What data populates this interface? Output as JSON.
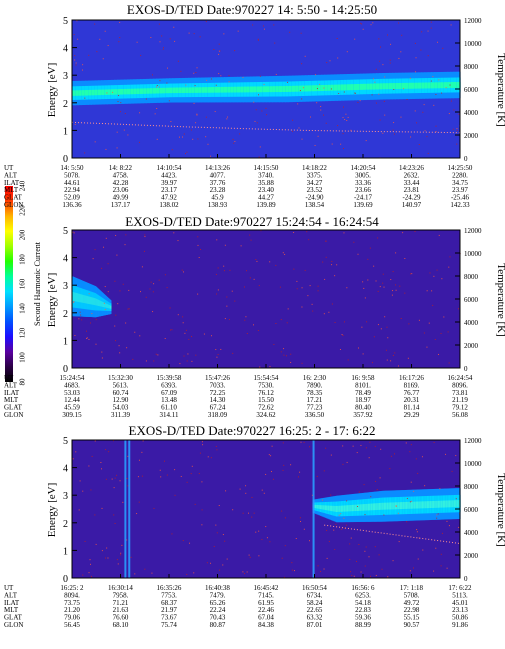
{
  "colorbar": {
    "label": "Second Harmonic Current",
    "ticks": [
      "80",
      "100",
      "120",
      "140",
      "160",
      "180",
      "200",
      "220",
      "240"
    ],
    "colors": [
      "#000000",
      "#2a0044",
      "#5a00a0",
      "#1c0dff",
      "#0050ff",
      "#009cff",
      "#00e0ff",
      "#00ff9a",
      "#22ff00",
      "#a0ff00",
      "#ffff00",
      "#ffb400",
      "#ff3c00",
      "#ff0000"
    ]
  },
  "chart_data": [
    {
      "type": "heatmap",
      "title": "EXOS-D/TED   Date:970227  14: 5:50 - 14:25:50",
      "ylabel": "Energy [eV]",
      "y2label": "Temperature [K]",
      "ylim": [
        0,
        5
      ],
      "y2lim": [
        0,
        12000
      ],
      "yticks": [
        "0",
        "1",
        "2",
        "3",
        "4",
        "5"
      ],
      "y2ticks": [
        "0",
        "2000",
        "4000",
        "6000",
        "8000",
        "10000",
        "12000"
      ],
      "background_color": "#2f37d6",
      "peak_band": [
        {
          "x": 0.0,
          "center": 2.35,
          "width": 0.55
        },
        {
          "x": 0.25,
          "center": 2.45,
          "width": 0.55
        },
        {
          "x": 0.55,
          "center": 2.5,
          "width": 0.6
        },
        {
          "x": 0.8,
          "center": 2.6,
          "width": 0.6
        },
        {
          "x": 1.0,
          "center": 2.65,
          "width": 0.6
        }
      ],
      "temperature_trace": [
        {
          "x": 0.0,
          "t": 3100
        },
        {
          "x": 0.3,
          "t": 2700
        },
        {
          "x": 0.6,
          "t": 2400
        },
        {
          "x": 1.0,
          "t": 2200
        }
      ],
      "ephemeris": {
        "labels": [
          "UT",
          "ALT",
          "ILAT",
          "MLT",
          "GLAT",
          "GLON"
        ],
        "columns": [
          [
            "14: 5:50",
            "5078.",
            "44.61",
            "22.94",
            "52.09",
            "136.36"
          ],
          [
            "14: 8:22",
            "4758.",
            "42.28",
            "23.06",
            "49.99",
            "137.17"
          ],
          [
            "14:10:54",
            "4423.",
            "39.97",
            "23.17",
            "47.92",
            "138.02"
          ],
          [
            "14:13:26",
            "4077.",
            "37.76",
            "23.28",
            "45.9",
            "138.93"
          ],
          [
            "14:15:50",
            "3740.",
            "35.88",
            "23.40",
            "44.27",
            "139.89"
          ],
          [
            "14:18:22",
            "3375.",
            "34.27",
            "23.52",
            "-24.90",
            "138.54"
          ],
          [
            "14:20:54",
            "3005.",
            "33.36",
            "23.66",
            "-24.17",
            "139.69"
          ],
          [
            "14:23:26",
            "2632.",
            "33.44",
            "23.81",
            "-24.29",
            "140.97"
          ],
          [
            "14:25:50",
            "2280.",
            "34.75",
            "23.97",
            "-25.46",
            "142.33"
          ]
        ]
      }
    },
    {
      "type": "heatmap",
      "title": "EXOS-D/TED   Date:970227  15:24:54 - 16:24:54",
      "ylabel": "Energy [eV]",
      "y2label": "Temperature [K]",
      "ylim": [
        0,
        5
      ],
      "y2lim": [
        0,
        12000
      ],
      "yticks": [
        "0",
        "1",
        "2",
        "3",
        "4",
        "5"
      ],
      "y2ticks": [
        "0",
        "2000",
        "4000",
        "6000",
        "8000",
        "10000",
        "12000"
      ],
      "background_color": "#3a1aa6",
      "peak_band": [
        {
          "x": 0.0,
          "center": 2.6,
          "width": 0.9
        },
        {
          "x": 0.06,
          "center": 2.4,
          "width": 0.7
        },
        {
          "x": 0.1,
          "center": 2.2,
          "width": 0.3
        }
      ],
      "temperature_trace": [],
      "ephemeris": {
        "labels": [
          "UT",
          "ALT",
          "ILAT",
          "MLT",
          "GLAT",
          "GLON"
        ],
        "columns": [
          [
            "15:24:54",
            "4683.",
            "53.03",
            "12.44",
            "45.59",
            "309.15"
          ],
          [
            "15:32:30",
            "5613.",
            "60.74",
            "12.90",
            "54.03",
            "311.39"
          ],
          [
            "15:39:58",
            "6393.",
            "67.09",
            "13.48",
            "61.10",
            "314.11"
          ],
          [
            "15:47:26",
            "7033.",
            "72.25",
            "14.30",
            "67.24",
            "318.09"
          ],
          [
            "15:54:54",
            "7530.",
            "76.12",
            "15.50",
            "72.62",
            "324.62"
          ],
          [
            "16: 2:30",
            "7890.",
            "78.35",
            "17.21",
            "77.23",
            "336.50"
          ],
          [
            "16: 9:58",
            "8101.",
            "78.49",
            "18.97",
            "80.40",
            "357.92"
          ],
          [
            "16:17:26",
            "8169.",
            "76.77",
            "20.31",
            "81.14",
            "29.29"
          ],
          [
            "16:24:54",
            "8096.",
            "73.81",
            "21.19",
            "79.12",
            "56.08"
          ]
        ]
      }
    },
    {
      "type": "heatmap",
      "title": "EXOS-D/TED   Date:970227  16:25: 2 - 17: 6:22",
      "ylabel": "Energy [eV]",
      "y2label": "Temperature [K]",
      "ylim": [
        0,
        5
      ],
      "y2lim": [
        0,
        12000
      ],
      "yticks": [
        "0",
        "1",
        "2",
        "3",
        "4",
        "5"
      ],
      "y2ticks": [
        "0",
        "2000",
        "4000",
        "6000",
        "8000",
        "10000",
        "12000"
      ],
      "background_color": "#3a1aa6",
      "peak_band": [
        {
          "x": 0.62,
          "center": 2.6,
          "width": 0.3
        },
        {
          "x": 0.68,
          "center": 2.5,
          "width": 0.6
        },
        {
          "x": 0.8,
          "center": 2.6,
          "width": 0.7
        },
        {
          "x": 1.0,
          "center": 2.7,
          "width": 0.7
        }
      ],
      "temperature_trace": [
        {
          "x": 0.65,
          "t": 4600
        },
        {
          "x": 0.8,
          "t": 3900
        },
        {
          "x": 1.0,
          "t": 3000
        }
      ],
      "ephemeris": {
        "labels": [
          "UT",
          "ALT",
          "ILAT",
          "MLT",
          "GLAT",
          "GLON"
        ],
        "columns": [
          [
            "16:25: 2",
            "8094.",
            "73.75",
            "21.20",
            "79.06",
            "56.45"
          ],
          [
            "16:30:14",
            "7958.",
            "71.21",
            "21.63",
            "76.60",
            "68.10"
          ],
          [
            "16:35:26",
            "7753.",
            "68.37",
            "21.97",
            "73.67",
            "75.74"
          ],
          [
            "16:40:38",
            "7479.",
            "65.26",
            "22.24",
            "70.43",
            "80.87"
          ],
          [
            "16:45:42",
            "7145.",
            "61.95",
            "22.46",
            "67.04",
            "84.38"
          ],
          [
            "16:50:54",
            "6734.",
            "58.24",
            "22.65",
            "63.32",
            "87.01"
          ],
          [
            "16:56: 6",
            "6253.",
            "54.18",
            "22.83",
            "59.36",
            "88.99"
          ],
          [
            "17: 1:18",
            "5708.",
            "49.72",
            "22.98",
            "55.15",
            "90.57"
          ],
          [
            "17: 6:22",
            "5113.",
            "45.01",
            "23.13",
            "50.86",
            "91.86"
          ]
        ]
      }
    }
  ]
}
